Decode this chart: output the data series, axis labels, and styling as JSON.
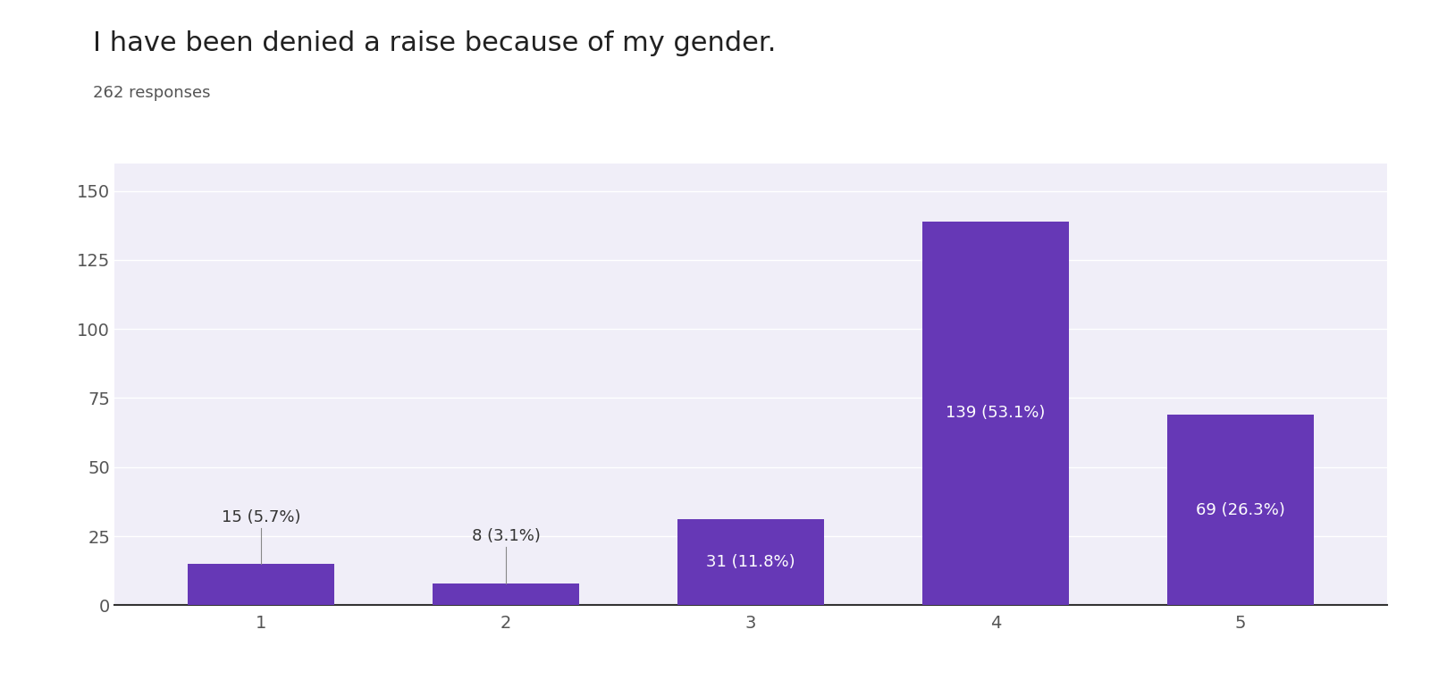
{
  "title": "I have been denied a raise because of my gender.",
  "subtitle": "262 responses",
  "categories": [
    "1",
    "2",
    "3",
    "4",
    "5"
  ],
  "values": [
    15,
    8,
    31,
    139,
    69
  ],
  "percentages": [
    "5.7%",
    "3.1%",
    "11.8%",
    "53.1%",
    "26.3%"
  ],
  "bar_color": "#6638b6",
  "plot_bg_color": "#f0eef8",
  "background_color": "#ffffff",
  "ylim": [
    0,
    160
  ],
  "yticks": [
    0,
    25,
    50,
    75,
    100,
    125,
    150
  ],
  "title_fontsize": 22,
  "subtitle_fontsize": 13,
  "tick_fontsize": 14,
  "bar_label_fontsize": 13,
  "grid_color": "#ffffff",
  "bar_width": 0.6,
  "inside_label_threshold": 20
}
